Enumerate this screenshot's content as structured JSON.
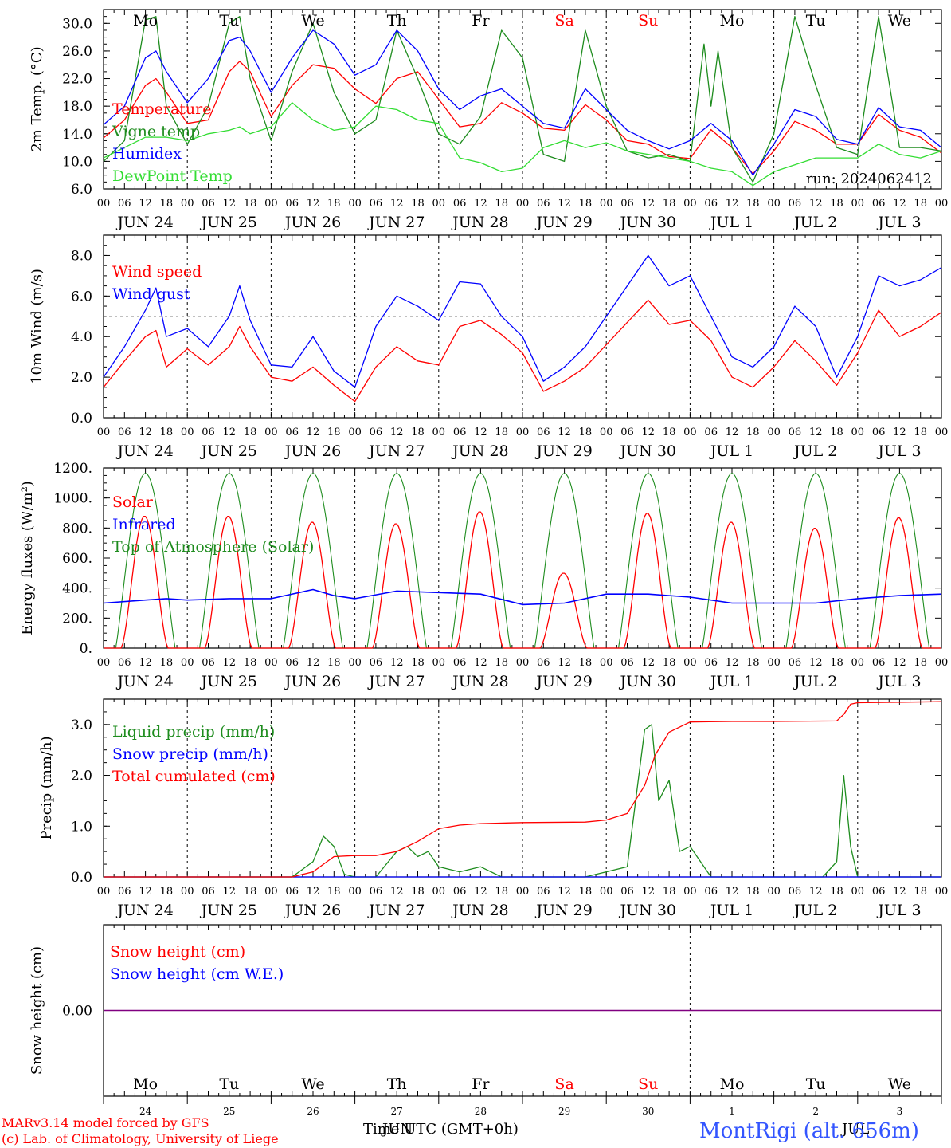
{
  "colors": {
    "red": "#ff0000",
    "green": "#1e8c1e",
    "blue": "#0000ff",
    "lightgreen": "#33dd33",
    "purple": "#800080",
    "black": "#000000",
    "title_blue": "#3355ff"
  },
  "days": [
    "JUN 24",
    "JUN 25",
    "JUN 26",
    "JUN 27",
    "JUN 28",
    "JUN 29",
    "JUN 30",
    "JUL  1",
    "JUL  2",
    "JUL  3"
  ],
  "hour_ticks": [
    "00",
    "06",
    "12",
    "18"
  ],
  "final_tick": "00",
  "weekdays": [
    {
      "label": "Mo",
      "weekend": false
    },
    {
      "label": "Tu",
      "weekend": false
    },
    {
      "label": "We",
      "weekend": false
    },
    {
      "label": "Th",
      "weekend": false
    },
    {
      "label": "Fr",
      "weekend": false
    },
    {
      "label": "Sa",
      "weekend": true
    },
    {
      "label": "Su",
      "weekend": true
    },
    {
      "label": "Mo",
      "weekend": false
    },
    {
      "label": "Tu",
      "weekend": false
    },
    {
      "label": "We",
      "weekend": false
    }
  ],
  "run_label": "run: 2024062412",
  "footer": {
    "model": "MARv3.14 model forced by GFS",
    "lab": "(c) Lab. of Climatology, University of Liege",
    "xlabel": "Time UTC (GMT+0h)",
    "station": "MontRigi (alt. 656m)",
    "day_numbers": [
      "24",
      "25",
      "26",
      "27",
      "28",
      "29",
      "30",
      "1",
      "2",
      "3"
    ],
    "month_overlap_a": "JUN",
    "month_overlap_b": "JUL"
  },
  "chart_data": [
    {
      "type": "line",
      "ylabel": "2m Temp. (°C)",
      "ylim": [
        6,
        32
      ],
      "yticks": [
        "6.0",
        "10.0",
        "14.0",
        "18.0",
        "22.0",
        "26.0",
        "30.0"
      ],
      "x_unit": "hours since JUN 24 00 UTC",
      "x_range": [
        0,
        240
      ],
      "series": [
        {
          "name": "Temperature",
          "color": "red",
          "x": [
            0,
            6,
            12,
            15,
            18,
            24,
            30,
            36,
            39,
            42,
            48,
            54,
            60,
            66,
            72,
            78,
            84,
            90,
            96,
            102,
            108,
            114,
            120,
            126,
            132,
            138,
            144,
            150,
            156,
            162,
            168,
            174,
            180,
            186,
            192,
            198,
            204,
            210,
            216,
            222,
            228,
            234,
            240
          ],
          "y": [
            13.4,
            16,
            21,
            22,
            20,
            15.5,
            16,
            23,
            24.5,
            23,
            16.5,
            21,
            24,
            23.5,
            20.5,
            18.4,
            22,
            23,
            19,
            15,
            15.5,
            18.5,
            17,
            14.8,
            14.5,
            18.2,
            16,
            13,
            12.5,
            10.7,
            10.4,
            14.6,
            12,
            8.2,
            11.5,
            15.8,
            14.5,
            12.5,
            12.5,
            16.8,
            14.5,
            13.5,
            11.2
          ]
        },
        {
          "name": "Vigne temp",
          "color": "green",
          "x": [
            0,
            6,
            12,
            15,
            18,
            24,
            30,
            36,
            39,
            42,
            48,
            54,
            60,
            66,
            72,
            78,
            84,
            90,
            96,
            102,
            108,
            114,
            120,
            126,
            132,
            138,
            144,
            150,
            156,
            162,
            168,
            172,
            174,
            176,
            180,
            186,
            192,
            198,
            204,
            210,
            216,
            222,
            228,
            234,
            240
          ],
          "y": [
            10,
            13,
            30.5,
            31,
            18,
            12.5,
            18,
            30,
            31,
            22,
            13,
            23,
            30,
            20,
            14,
            16,
            29,
            22,
            14,
            12.5,
            16.5,
            29,
            25,
            11,
            10,
            29,
            18,
            11.5,
            10.5,
            11,
            10,
            27,
            18,
            26,
            12,
            7,
            14,
            31,
            21,
            12,
            11,
            31,
            12,
            12,
            11.5
          ]
        },
        {
          "name": "Humidex",
          "color": "blue",
          "x": [
            0,
            6,
            12,
            15,
            18,
            24,
            30,
            36,
            39,
            42,
            48,
            54,
            60,
            66,
            72,
            78,
            84,
            90,
            96,
            102,
            108,
            114,
            120,
            126,
            132,
            138,
            144,
            150,
            156,
            162,
            168,
            174,
            180,
            186,
            192,
            198,
            204,
            210,
            216,
            222,
            228,
            234,
            240
          ],
          "y": [
            15.3,
            18,
            25,
            26,
            23,
            18.5,
            22,
            27.5,
            28,
            26,
            20,
            25,
            29,
            27,
            22.5,
            24,
            29,
            26,
            20.5,
            17.5,
            19.5,
            20.5,
            18,
            15.5,
            14.8,
            20.5,
            17.5,
            14.5,
            13,
            11.8,
            13,
            15.5,
            13,
            8,
            12.5,
            17.5,
            16.5,
            13.2,
            12.5,
            17.8,
            15,
            14.5,
            12
          ]
        },
        {
          "name": "DewPoint Temp",
          "color": "lightgreen",
          "x": [
            0,
            6,
            12,
            18,
            24,
            30,
            36,
            39,
            42,
            48,
            54,
            60,
            66,
            72,
            78,
            84,
            90,
            96,
            102,
            108,
            114,
            120,
            126,
            132,
            138,
            144,
            150,
            156,
            162,
            168,
            174,
            180,
            186,
            192,
            198,
            204,
            210,
            216,
            222,
            228,
            234,
            240
          ],
          "y": [
            10.5,
            12,
            13.5,
            13.5,
            13,
            14,
            14.5,
            15,
            14,
            15,
            18.5,
            16,
            14.5,
            15,
            18,
            17.5,
            16,
            15.5,
            10.5,
            9.8,
            8.5,
            9,
            12,
            13,
            12,
            12.7,
            11.5,
            11,
            10.5,
            10,
            9,
            8.5,
            6.5,
            8.5,
            9.5,
            10.5,
            10.5,
            10.5,
            12.5,
            11,
            10.5,
            11.5
          ]
        }
      ]
    },
    {
      "type": "line",
      "ylabel": "10m Wind (m/s)",
      "ylim": [
        0,
        9
      ],
      "yticks": [
        "0.0",
        "2.0",
        "4.0",
        "6.0",
        "8.0"
      ],
      "reference_line": 5,
      "x_unit": "hours since JUN 24 00 UTC",
      "x_range": [
        0,
        240
      ],
      "series": [
        {
          "name": "Wind speed",
          "color": "red",
          "x": [
            0,
            6,
            12,
            15,
            18,
            24,
            30,
            36,
            39,
            42,
            48,
            54,
            60,
            66,
            72,
            78,
            84,
            90,
            96,
            102,
            108,
            114,
            120,
            126,
            132,
            138,
            144,
            150,
            156,
            162,
            168,
            174,
            180,
            186,
            192,
            198,
            204,
            210,
            216,
            222,
            228,
            234,
            240
          ],
          "y": [
            1.5,
            2.8,
            4,
            4.3,
            2.5,
            3.4,
            2.6,
            3.5,
            4.5,
            3.5,
            2,
            1.8,
            2.5,
            1.6,
            0.8,
            2.5,
            3.5,
            2.8,
            2.6,
            4.5,
            4.8,
            4.1,
            3.2,
            1.3,
            1.8,
            2.5,
            3.6,
            4.7,
            5.8,
            4.6,
            4.8,
            3.8,
            2,
            1.5,
            2.5,
            3.8,
            2.8,
            1.6,
            3.2,
            5.3,
            4,
            4.5,
            5.2
          ]
        },
        {
          "name": "Wind gust",
          "color": "blue",
          "x": [
            0,
            6,
            12,
            15,
            18,
            24,
            30,
            36,
            39,
            42,
            48,
            54,
            60,
            66,
            72,
            78,
            84,
            90,
            96,
            102,
            108,
            114,
            120,
            126,
            132,
            138,
            144,
            150,
            156,
            162,
            168,
            174,
            180,
            186,
            192,
            198,
            204,
            210,
            216,
            222,
            228,
            234,
            240
          ],
          "y": [
            2,
            3.5,
            5.3,
            6.4,
            4,
            4.4,
            3.5,
            5,
            6.5,
            4.8,
            2.6,
            2.5,
            4,
            2.3,
            1.5,
            4.5,
            6,
            5.5,
            4.8,
            6.7,
            6.6,
            5,
            4,
            1.8,
            2.5,
            3.5,
            5,
            6.5,
            8,
            6.5,
            7,
            5,
            3,
            2.5,
            3.5,
            5.5,
            4.5,
            2,
            4,
            7,
            6.5,
            6.8,
            7.4
          ]
        }
      ]
    },
    {
      "type": "line",
      "ylabel": "Energy fluxes (W/m²)",
      "ylim": [
        0,
        1200
      ],
      "yticks": [
        "0.",
        "200.",
        "400.",
        "600.",
        "800.",
        "1000.",
        "1200."
      ],
      "x_unit": "hours since JUN 24 00 UTC",
      "x_range": [
        0,
        240
      ],
      "series": [
        {
          "name": "Solar",
          "color": "red",
          "peaks": [
            880,
            880,
            840,
            830,
            910,
            500,
            900,
            840,
            800,
            870
          ]
        },
        {
          "name": "Infrared",
          "color": "blue",
          "x": [
            0,
            12,
            18,
            24,
            36,
            48,
            60,
            66,
            72,
            84,
            96,
            108,
            120,
            132,
            144,
            156,
            168,
            180,
            192,
            204,
            216,
            228,
            240
          ],
          "y": [
            300,
            320,
            330,
            320,
            330,
            330,
            390,
            350,
            330,
            380,
            370,
            360,
            290,
            300,
            360,
            360,
            340,
            300,
            300,
            300,
            330,
            350,
            360
          ]
        },
        {
          "name": "Top of Atmosphere (Solar)",
          "color": "green",
          "daily_max": 1165
        }
      ]
    },
    {
      "type": "line",
      "ylabel": "Precip (mm/h)",
      "ylim": [
        0,
        3.5
      ],
      "yticks": [
        "0.0",
        "1.0",
        "2.0",
        "3.0"
      ],
      "x_unit": "hours since JUN 24 00 UTC",
      "x_range": [
        0,
        240
      ],
      "series": [
        {
          "name": "Liquid precip (mm/h)",
          "color": "green",
          "x": [
            0,
            54,
            60,
            63,
            66,
            69,
            72,
            78,
            84,
            87,
            90,
            93,
            96,
            102,
            108,
            114,
            120,
            126,
            132,
            138,
            144,
            150,
            155,
            157,
            159,
            162,
            165,
            168,
            171,
            174,
            186,
            206,
            210,
            212,
            214,
            216,
            222,
            240
          ],
          "y": [
            0,
            0,
            0.3,
            0.8,
            0.6,
            0.05,
            0,
            0,
            0.5,
            0.6,
            0.4,
            0.5,
            0.2,
            0.1,
            0.2,
            0,
            0,
            0,
            0,
            0,
            0.1,
            0.2,
            2.9,
            3,
            1.5,
            1.9,
            0.5,
            0.6,
            0.3,
            0,
            0,
            0,
            0.3,
            2,
            0.6,
            0,
            0,
            0
          ]
        },
        {
          "name": "Snow precip (mm/h)",
          "color": "blue",
          "x": [
            0,
            240
          ],
          "y": [
            0,
            0
          ]
        },
        {
          "name": "Total cumulated (cm)",
          "color": "red",
          "x": [
            0,
            54,
            60,
            66,
            72,
            78,
            84,
            90,
            96,
            102,
            108,
            120,
            138,
            144,
            150,
            155,
            158,
            162,
            168,
            180,
            192,
            210,
            212,
            214,
            216,
            240
          ],
          "y": [
            0,
            0,
            0.1,
            0.4,
            0.42,
            0.42,
            0.5,
            0.7,
            0.95,
            1.02,
            1.05,
            1.07,
            1.08,
            1.12,
            1.25,
            1.8,
            2.4,
            2.85,
            3.05,
            3.06,
            3.06,
            3.07,
            3.2,
            3.4,
            3.43,
            3.45
          ]
        }
      ]
    },
    {
      "type": "line",
      "ylabel": "Snow height (cm)",
      "yticks": [
        "0.00"
      ],
      "x_unit": "hours since JUN 24 00 UTC",
      "x_range": [
        0,
        240
      ],
      "series": [
        {
          "name": "Snow height (cm)",
          "color": "red",
          "x": [
            0,
            240
          ],
          "y": [
            0,
            0
          ]
        },
        {
          "name": "Snow height (cm W.E.)",
          "color": "blue",
          "x": [
            0,
            240
          ],
          "y": [
            0,
            0
          ]
        }
      ]
    }
  ]
}
